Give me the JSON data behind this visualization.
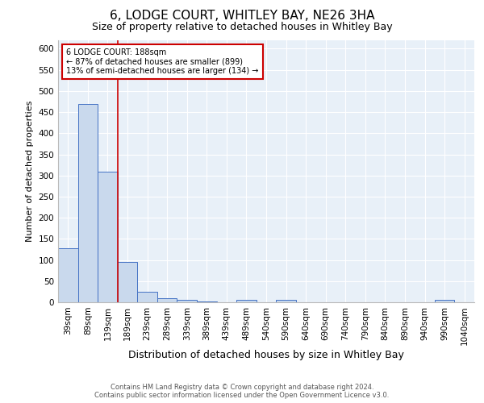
{
  "title": "6, LODGE COURT, WHITLEY BAY, NE26 3HA",
  "subtitle": "Size of property relative to detached houses in Whitley Bay",
  "xlabel": "Distribution of detached houses by size in Whitley Bay",
  "ylabel": "Number of detached properties",
  "bar_labels": [
    "39sqm",
    "89sqm",
    "139sqm",
    "189sqm",
    "239sqm",
    "289sqm",
    "339sqm",
    "389sqm",
    "439sqm",
    "489sqm",
    "540sqm",
    "590sqm",
    "640sqm",
    "690sqm",
    "740sqm",
    "790sqm",
    "840sqm",
    "890sqm",
    "940sqm",
    "990sqm",
    "1040sqm"
  ],
  "bar_values": [
    128,
    470,
    310,
    95,
    25,
    10,
    5,
    2,
    0,
    5,
    0,
    5,
    0,
    0,
    0,
    0,
    0,
    0,
    0,
    5,
    0
  ],
  "bar_color": "#c9d9ed",
  "bar_edge_color": "#4472c4",
  "background_color": "#e8f0f8",
  "property_line_color": "#cc0000",
  "annotation_text": "6 LODGE COURT: 188sqm\n← 87% of detached houses are smaller (899)\n13% of semi-detached houses are larger (134) →",
  "annotation_box_color": "#ffffff",
  "annotation_box_edge": "#cc0000",
  "ylim": [
    0,
    620
  ],
  "yticks": [
    0,
    50,
    100,
    150,
    200,
    250,
    300,
    350,
    400,
    450,
    500,
    550,
    600
  ],
  "footer_line1": "Contains HM Land Registry data © Crown copyright and database right 2024.",
  "footer_line2": "Contains public sector information licensed under the Open Government Licence v3.0.",
  "title_fontsize": 11,
  "subtitle_fontsize": 9,
  "xlabel_fontsize": 9,
  "ylabel_fontsize": 8,
  "tick_fontsize": 7.5,
  "annotation_fontsize": 7,
  "footer_fontsize": 6
}
